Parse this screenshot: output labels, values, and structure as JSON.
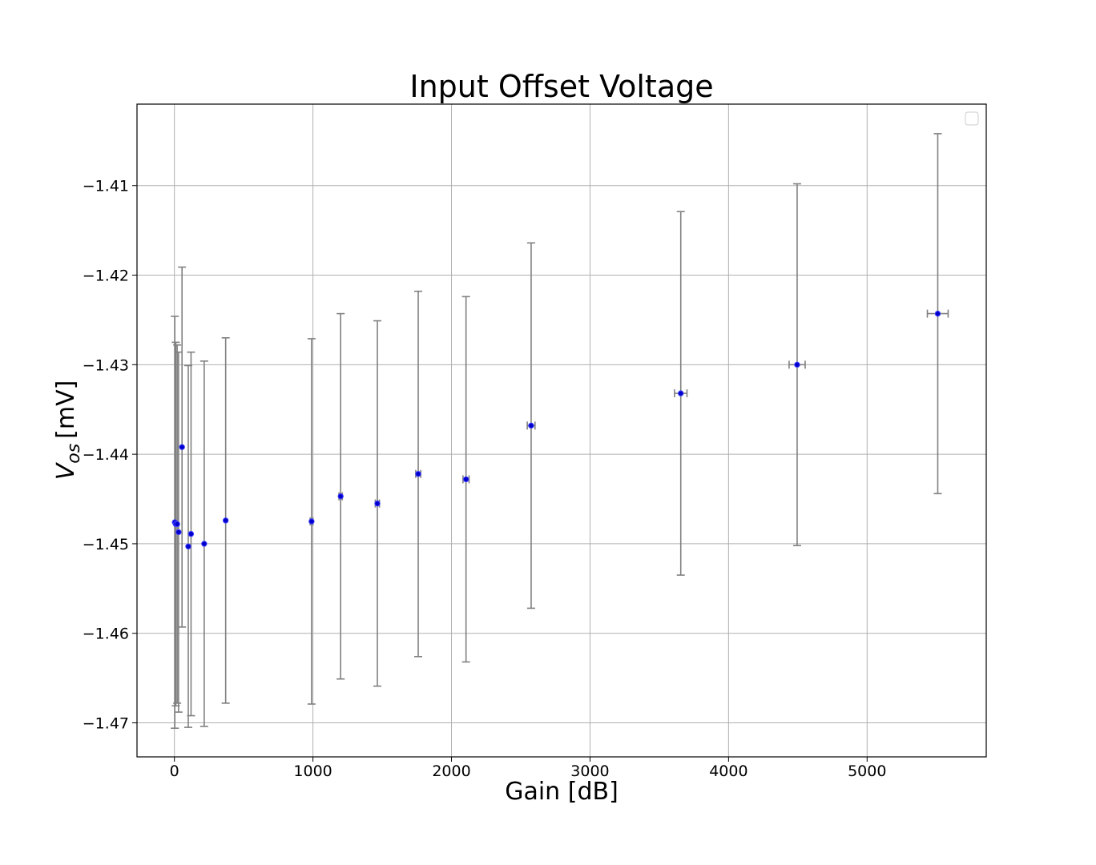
{
  "chart_data": {
    "type": "scatter",
    "title": "Input Offset Voltage",
    "xlabel": "Gain [dB]",
    "ylabel_main": "V",
    "ylabel_sub": "os",
    "ylabel_unit": "[mV]",
    "xlim": [
      -270,
      5860
    ],
    "ylim": [
      -1.4738,
      -1.4009
    ],
    "x_ticks": [
      0,
      1000,
      2000,
      3000,
      4000,
      5000
    ],
    "x_tick_labels": [
      "0",
      "1000",
      "2000",
      "3000",
      "4000",
      "5000"
    ],
    "y_ticks": [
      -1.47,
      -1.46,
      -1.45,
      -1.44,
      -1.43,
      -1.42,
      -1.41
    ],
    "y_tick_labels": [
      "−1.47",
      "−1.46",
      "−1.45",
      "−1.44",
      "−1.43",
      "−1.42",
      "−1.41"
    ],
    "grid": true,
    "legend": "top-right (empty)",
    "marker_color": "#0000cc",
    "errorbar_color": "#808080",
    "points": [
      {
        "x": 3,
        "y": -1.4476,
        "yerr": 0.023,
        "xerr": 0
      },
      {
        "x": 10,
        "y": -1.4478,
        "yerr": 0.0203,
        "xerr": 0
      },
      {
        "x": 20,
        "y": -1.4478,
        "yerr": 0.02,
        "xerr": 0
      },
      {
        "x": 30,
        "y": -1.4487,
        "yerr": 0.0201,
        "xerr": 0
      },
      {
        "x": 55,
        "y": -1.4392,
        "yerr": 0.0201,
        "xerr": 0
      },
      {
        "x": 100,
        "y": -1.4503,
        "yerr": 0.0202,
        "xerr": 0
      },
      {
        "x": 120,
        "y": -1.4489,
        "yerr": 0.0203,
        "xerr": 0
      },
      {
        "x": 215,
        "y": -1.45,
        "yerr": 0.0204,
        "xerr": 0
      },
      {
        "x": 370,
        "y": -1.4474,
        "yerr": 0.0204,
        "xerr": 0
      },
      {
        "x": 990,
        "y": -1.4475,
        "yerr": 0.0204,
        "xerr": 10
      },
      {
        "x": 1200,
        "y": -1.4447,
        "yerr": 0.0204,
        "xerr": 12
      },
      {
        "x": 1465,
        "y": -1.4455,
        "yerr": 0.0204,
        "xerr": 15
      },
      {
        "x": 1760,
        "y": -1.4422,
        "yerr": 0.0204,
        "xerr": 18
      },
      {
        "x": 2105,
        "y": -1.4428,
        "yerr": 0.0204,
        "xerr": 22
      },
      {
        "x": 2575,
        "y": -1.4368,
        "yerr": 0.0204,
        "xerr": 28
      },
      {
        "x": 3655,
        "y": -1.4332,
        "yerr": 0.0203,
        "xerr": 45
      },
      {
        "x": 4495,
        "y": -1.43,
        "yerr": 0.0202,
        "xerr": 58
      },
      {
        "x": 5510,
        "y": -1.4243,
        "yerr": 0.0201,
        "xerr": 75
      }
    ]
  }
}
